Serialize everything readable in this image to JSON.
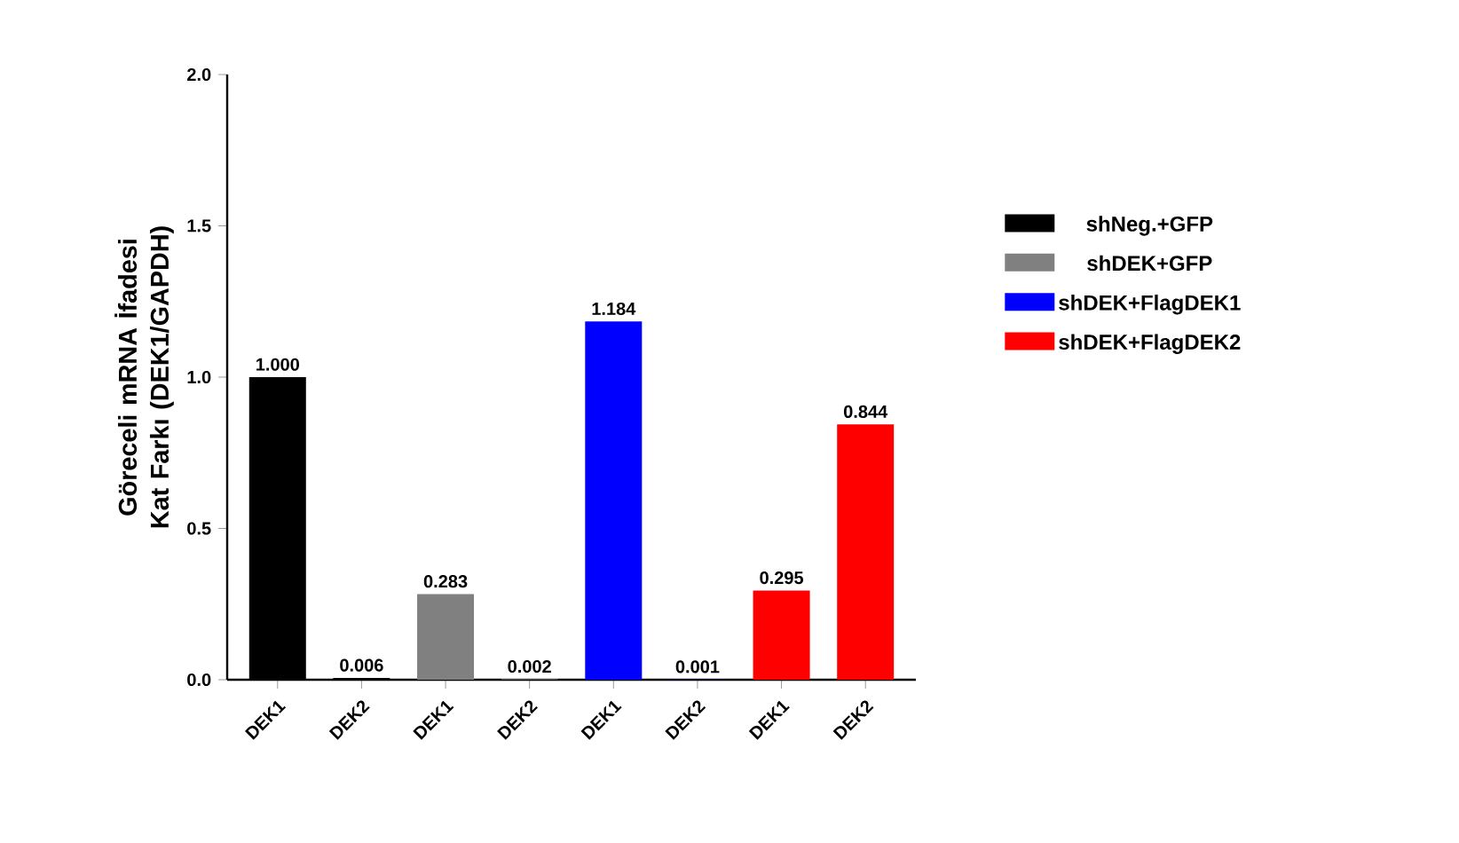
{
  "chart_data": {
    "type": "bar",
    "ylabel": "Göreceli mRNA İfadesi Kat Farkı (DEK1/GAPDH)",
    "categories": [
      "DEK1",
      "DEK2",
      "DEK1",
      "DEK2",
      "DEK1",
      "DEK2",
      "DEK1",
      "DEK2"
    ],
    "series": [
      {
        "name": "shNeg.+GFP",
        "color": "#000000",
        "values": [
          1.0,
          0.006,
          null,
          null,
          null,
          null,
          null,
          null
        ],
        "value_labels": [
          "1.000",
          "0.006",
          null,
          null,
          null,
          null,
          null,
          null
        ]
      },
      {
        "name": "shDEK+GFP",
        "color": "#808080",
        "values": [
          null,
          null,
          0.283,
          0.002,
          null,
          null,
          null,
          null
        ],
        "value_labels": [
          null,
          null,
          "0.283",
          "0.002",
          null,
          null,
          null,
          null
        ]
      },
      {
        "name": "shDEK+FlagDEK1",
        "color": "#0000ff",
        "values": [
          null,
          null,
          null,
          null,
          1.184,
          0.001,
          null,
          null
        ],
        "value_labels": [
          null,
          null,
          null,
          null,
          "1.184",
          "0.001",
          null,
          null
        ]
      },
      {
        "name": "shDEK+FlagDEK2",
        "color": "#ff0000",
        "values": [
          null,
          null,
          null,
          null,
          null,
          null,
          0.295,
          0.844
        ],
        "value_labels": [
          null,
          null,
          null,
          null,
          null,
          null,
          "0.295",
          "0.844"
        ]
      }
    ],
    "ylim": [
      0,
      2
    ],
    "yticks": [
      {
        "value": 0,
        "label": "0.0"
      },
      {
        "value": 0.5,
        "label": "0.5"
      },
      {
        "value": 1,
        "label": "1.0"
      },
      {
        "value": 1.5,
        "label": "1.5"
      },
      {
        "value": 2,
        "label": "2.0"
      }
    ],
    "legend": "right"
  }
}
